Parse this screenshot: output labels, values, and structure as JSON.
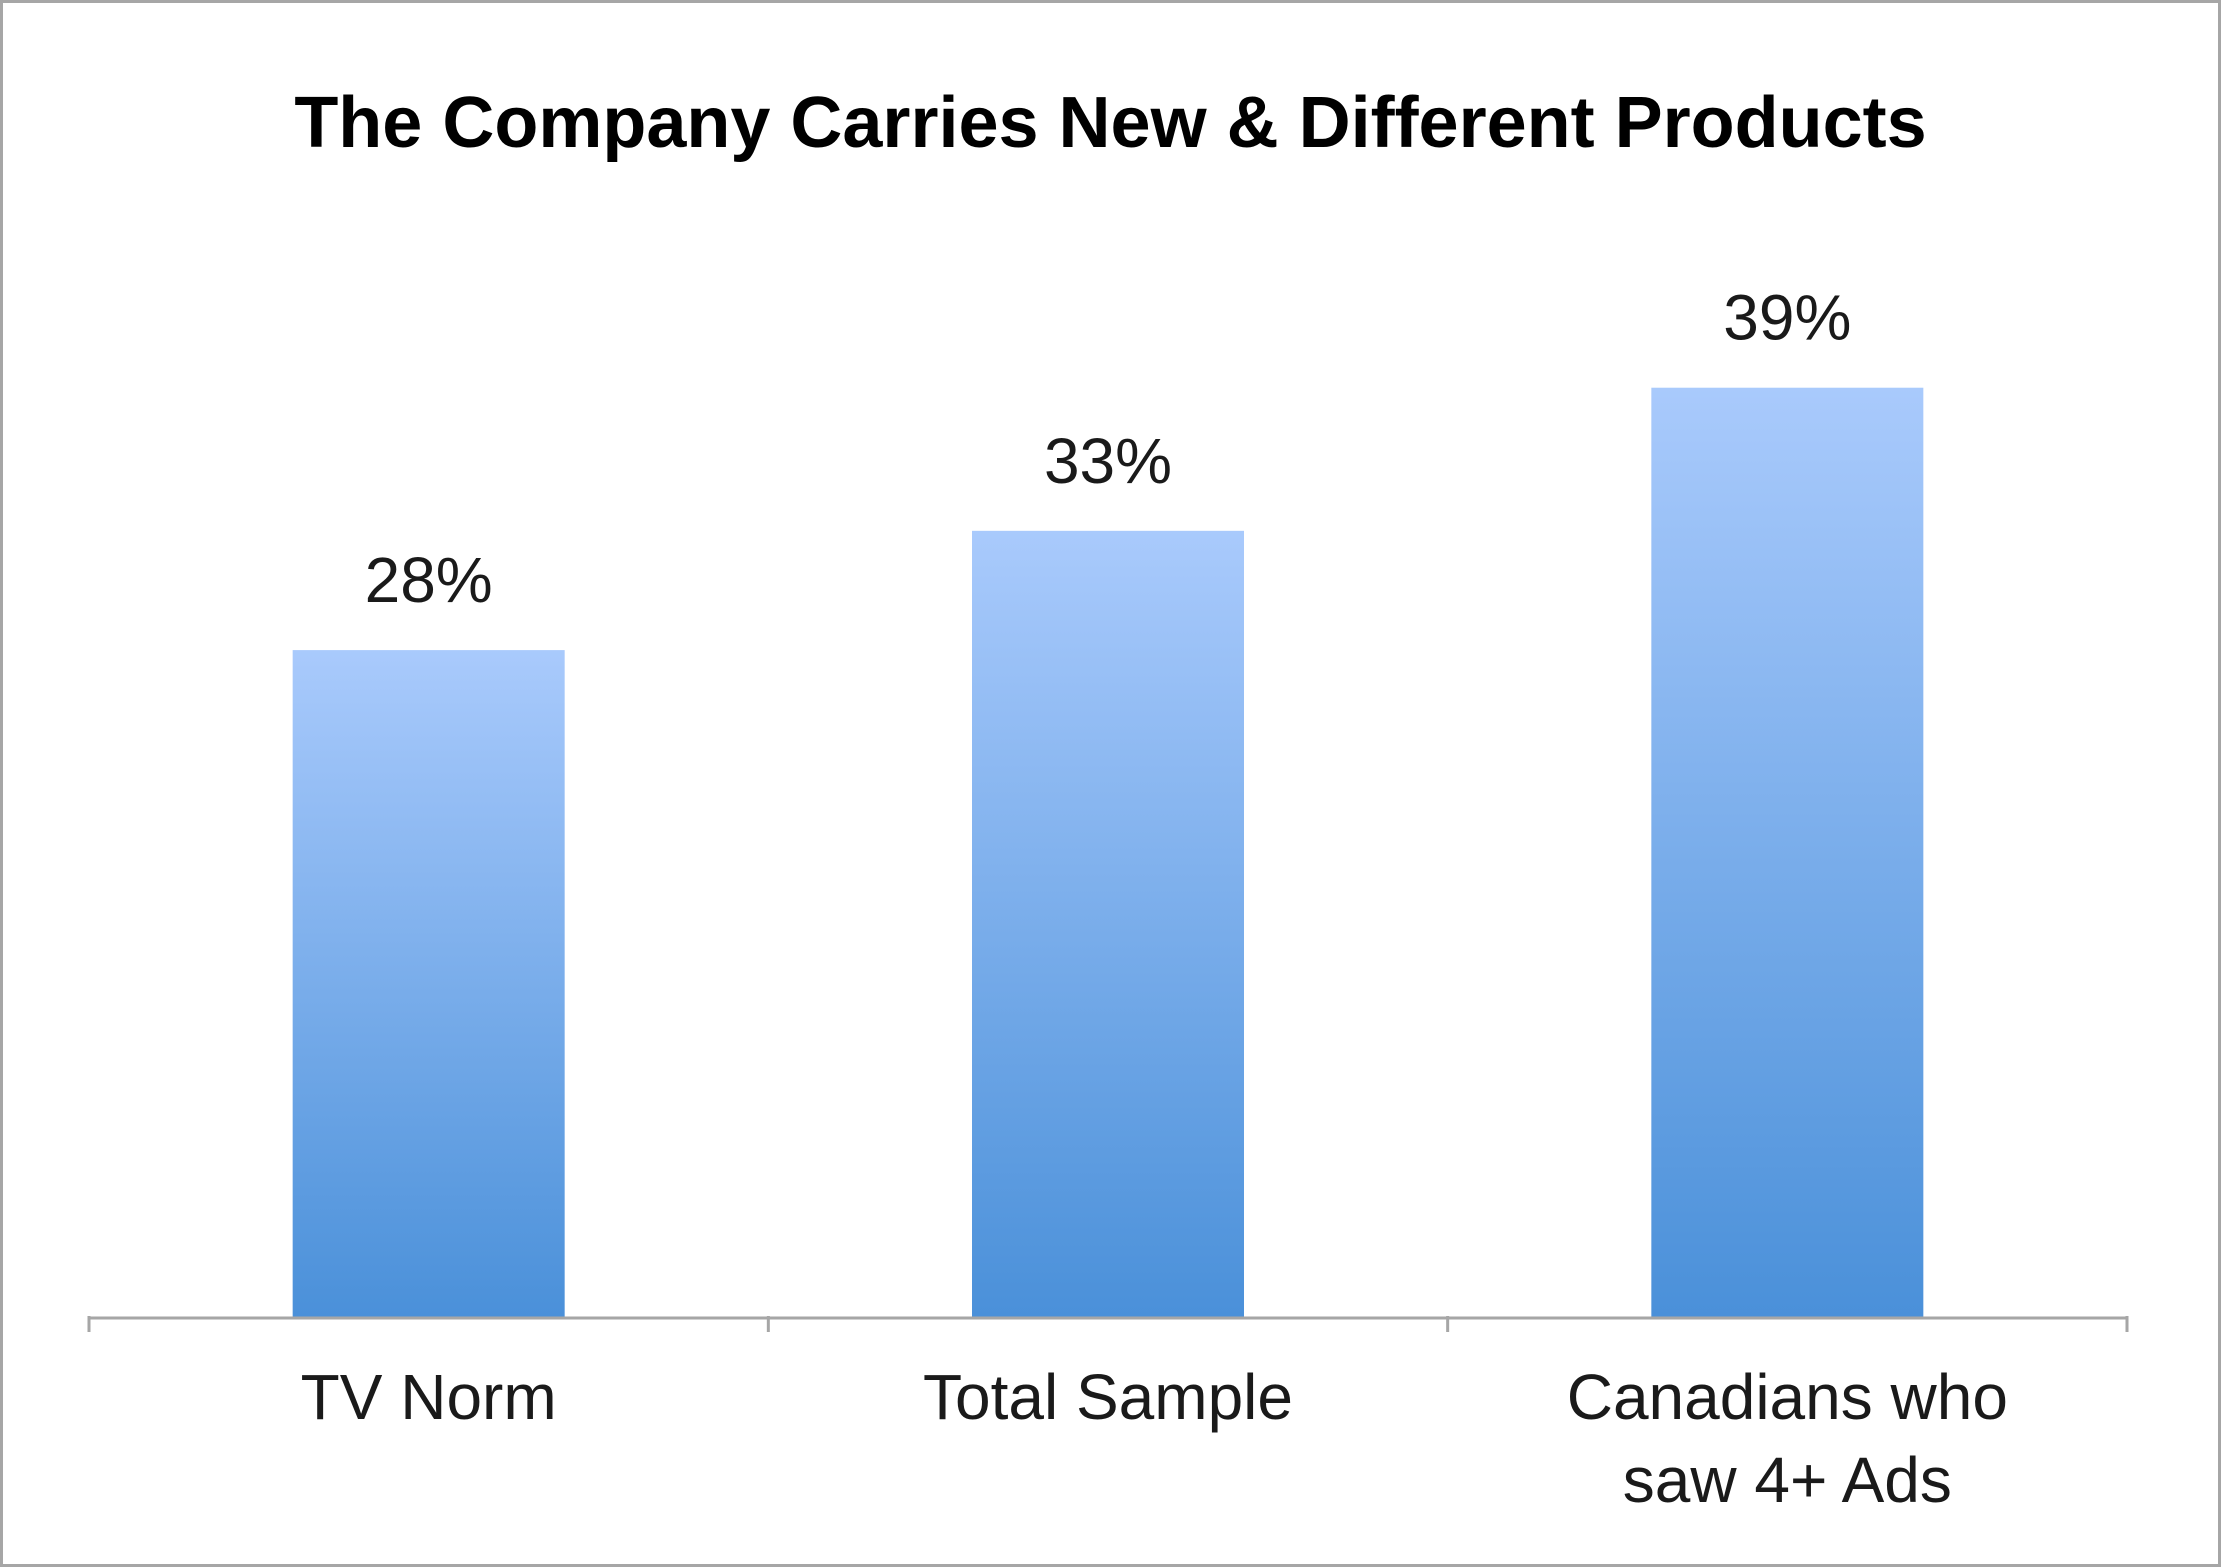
{
  "chart_data": {
    "type": "bar",
    "title": "The Company Carries New & Different Products",
    "categories": [
      [
        "TV Norm"
      ],
      [
        "Total Sample"
      ],
      [
        "Canadians who",
        "saw 4+ Ads"
      ]
    ],
    "values": [
      28,
      33,
      39
    ],
    "value_labels": [
      "28%",
      "33%",
      "39%"
    ],
    "unit": "%",
    "ylim": [
      0,
      41
    ],
    "grid": false,
    "legend": "none",
    "xlabel": "",
    "ylabel": "",
    "colors": {
      "bar_top": "#a9cafc",
      "bar_bottom": "#4a90d9",
      "axis": "#a6a6a6"
    }
  }
}
